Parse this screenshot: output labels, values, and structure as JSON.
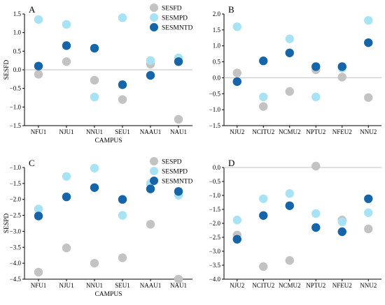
{
  "colors": {
    "gray": "#c3c3c3",
    "light_blue": "#a8e3f5",
    "dark_blue": "#1565a8",
    "zero_line": "#bfbfbf"
  },
  "chart_data": [
    {
      "type": "scatter",
      "panel_label": "A",
      "categories": [
        "NFU1",
        "NJU1",
        "NNU1",
        "SEU1",
        "NAAU1",
        "NAU1"
      ],
      "xlabel": "CAMPUS",
      "ylabel": "SESFD",
      "ylim": [
        -1.5,
        1.5
      ],
      "yticks": [
        "1.5",
        "1.0",
        "0.5",
        "0.0",
        "−0.5",
        "−1.0",
        "−1.5"
      ],
      "legend_position": "top-right",
      "series": [
        {
          "name": "SESFD",
          "color": "gray",
          "values": [
            -0.12,
            0.22,
            -0.28,
            -0.8,
            0.15,
            -1.33
          ]
        },
        {
          "name": "SESMPD",
          "color": "light_blue",
          "values": [
            1.35,
            1.22,
            -0.73,
            1.4,
            0.25,
            0.32
          ]
        },
        {
          "name": "SESMNTD",
          "color": "dark_blue",
          "values": [
            0.1,
            0.65,
            0.58,
            -0.4,
            -0.15,
            0.22
          ]
        }
      ]
    },
    {
      "type": "scatter",
      "panel_label": "B",
      "categories": [
        "NJU2",
        "NCITU2",
        "NCMU2",
        "NPTU2",
        "NFEU2",
        "NNU2"
      ],
      "xlabel": "",
      "ylabel": "",
      "ylim": [
        -1.5,
        2.0
      ],
      "yticks": [
        "2.0",
        "1.5",
        "1.0",
        "0.5",
        "0.0",
        "−0.5",
        "−1.0",
        "−1.5"
      ],
      "series": [
        {
          "name": "",
          "color": "gray",
          "values": [
            0.15,
            -0.9,
            -0.43,
            0.25,
            0.02,
            -0.62
          ]
        },
        {
          "name": "",
          "color": "light_blue",
          "values": [
            1.6,
            -0.6,
            1.22,
            -0.6,
            0.3,
            1.8
          ]
        },
        {
          "name": "",
          "color": "dark_blue",
          "values": [
            -0.12,
            0.53,
            0.78,
            0.35,
            0.35,
            1.1
          ]
        }
      ]
    },
    {
      "type": "scatter",
      "panel_label": "C",
      "categories": [
        "NFU1",
        "NJU1",
        "NNU1",
        "SEU1",
        "NAAU1",
        "NAU1"
      ],
      "xlabel": "CAMPUS",
      "ylabel": "SESPD",
      "ylim": [
        -4.5,
        -1.0
      ],
      "yticks": [
        "−1.0",
        "−1.5",
        "−2.0",
        "−2.5",
        "−3.0",
        "−3.5",
        "−4.0",
        "−4.5"
      ],
      "legend_position": "top-right",
      "series": [
        {
          "name": "SESPD",
          "color": "gray",
          "values": [
            -4.28,
            -3.52,
            -4.0,
            -3.83,
            -2.78,
            -4.5
          ]
        },
        {
          "name": "SESMPD",
          "color": "light_blue",
          "values": [
            -2.3,
            -1.28,
            -1.02,
            -2.5,
            -1.5,
            -1.87
          ]
        },
        {
          "name": "SESMNTD",
          "color": "dark_blue",
          "values": [
            -2.52,
            -1.92,
            -1.63,
            -2.0,
            -1.67,
            -1.75
          ]
        }
      ]
    },
    {
      "type": "scatter",
      "panel_label": "D",
      "categories": [
        "NJU2",
        "NCITU2",
        "NCMU2",
        "NPTU2",
        "NFEU2",
        "NNU2"
      ],
      "xlabel": "",
      "ylabel": "",
      "ylim": [
        -4.0,
        0.0
      ],
      "yticks": [
        "0.0",
        "−0.5",
        "−1.0",
        "−1.5",
        "−2.0",
        "−2.5",
        "−3.0",
        "−3.5",
        "−4.0"
      ],
      "series": [
        {
          "name": "",
          "color": "gray",
          "values": [
            -2.42,
            -3.55,
            -3.33,
            0.05,
            -1.88,
            -2.2
          ]
        },
        {
          "name": "",
          "color": "light_blue",
          "values": [
            -1.88,
            -1.12,
            -0.93,
            -1.65,
            -1.95,
            -1.62
          ]
        },
        {
          "name": "",
          "color": "dark_blue",
          "values": [
            -2.57,
            -1.72,
            -1.37,
            -2.15,
            -2.3,
            -1.12
          ]
        }
      ]
    }
  ]
}
